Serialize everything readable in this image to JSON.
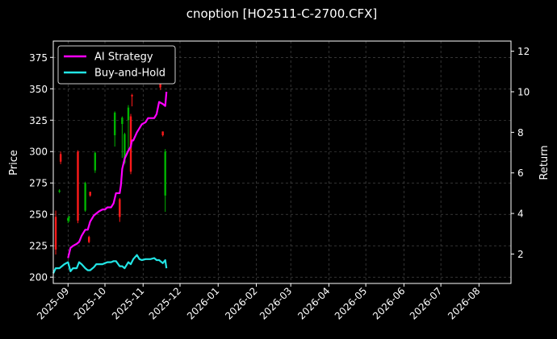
{
  "chart_data": {
    "type": "line",
    "title": "cnoption [HO2511-C-2700.CFX]",
    "xlabel": "",
    "ylabel": "Price",
    "ylabel_right": "Return",
    "legend": {
      "placement": "top-left"
    },
    "grid": true,
    "xlim": [
      "2025-08-20",
      "2026-08-27"
    ],
    "ylim": [
      195,
      388
    ],
    "ylim_right": [
      0.55,
      12.5
    ],
    "x_ticks": [
      "2025-09",
      "2025-10",
      "2025-11",
      "2025-12",
      "2026-01",
      "2026-02",
      "2026-03",
      "2026-04",
      "2026-05",
      "2026-06",
      "2026-07",
      "2026-08"
    ],
    "y_ticks": [
      200,
      225,
      250,
      275,
      300,
      325,
      350,
      375
    ],
    "y_ticks_right": [
      2,
      4,
      6,
      8,
      10,
      12
    ],
    "colors": {
      "up": "#00b300",
      "down": "#ff1a1a",
      "ai": "#ff00ff",
      "bh": "#22e5e5",
      "grid": "#555555"
    },
    "candles": [
      {
        "date": "2025-08-22",
        "open": 248,
        "close": 222,
        "high": 253,
        "low": 218
      },
      {
        "date": "2025-08-25",
        "open": 268,
        "close": 269,
        "high": 270,
        "low": 267
      },
      {
        "date": "2025-08-26",
        "open": 298,
        "close": 292,
        "high": 300,
        "low": 290
      },
      {
        "date": "2025-09-01",
        "open": 245,
        "close": 247,
        "high": 248,
        "low": 243
      },
      {
        "date": "2025-09-02",
        "open": 248,
        "close": 248,
        "high": 249,
        "low": 244
      },
      {
        "date": "2025-09-09",
        "open": 300,
        "close": 245,
        "high": 301,
        "low": 243
      },
      {
        "date": "2025-09-15",
        "open": 253,
        "close": 275,
        "high": 276,
        "low": 252
      },
      {
        "date": "2025-09-18",
        "open": 232,
        "close": 228,
        "high": 233,
        "low": 227
      },
      {
        "date": "2025-09-19",
        "open": 268,
        "close": 265,
        "high": 268,
        "low": 264
      },
      {
        "date": "2025-09-23",
        "open": 285,
        "close": 299,
        "high": 300,
        "low": 283
      },
      {
        "date": "2025-10-09",
        "open": 313,
        "close": 331,
        "high": 332,
        "low": 304
      },
      {
        "date": "2025-10-13",
        "open": 262,
        "close": 248,
        "high": 263,
        "low": 244
      },
      {
        "date": "2025-10-15",
        "open": 322,
        "close": 327,
        "high": 328,
        "low": 295
      },
      {
        "date": "2025-10-17",
        "open": 291,
        "close": 314,
        "high": 315,
        "low": 290
      },
      {
        "date": "2025-10-20",
        "open": 325,
        "close": 335,
        "high": 337,
        "low": 300
      },
      {
        "date": "2025-10-22",
        "open": 328,
        "close": 284,
        "high": 330,
        "low": 282
      },
      {
        "date": "2025-10-23",
        "open": 345,
        "close": 344,
        "high": 346,
        "low": 336
      },
      {
        "date": "2025-11-15",
        "open": 356,
        "close": 351,
        "high": 360,
        "low": 349
      },
      {
        "date": "2025-11-17",
        "open": 316,
        "close": 313,
        "high": 316,
        "low": 312
      },
      {
        "date": "2025-11-19",
        "open": 265,
        "close": 300,
        "high": 302,
        "low": 252
      }
    ],
    "series": [
      {
        "name": "AI Strategy",
        "x": [
          "2025-09-01",
          "2025-09-03",
          "2025-09-05",
          "2025-09-08",
          "2025-09-10",
          "2025-09-12",
          "2025-09-15",
          "2025-09-17",
          "2025-09-19",
          "2025-09-22",
          "2025-09-24",
          "2025-09-26",
          "2025-09-29",
          "2025-10-01",
          "2025-10-03",
          "2025-10-06",
          "2025-10-08",
          "2025-10-10",
          "2025-10-13",
          "2025-10-14",
          "2025-10-15",
          "2025-10-17",
          "2025-10-20",
          "2025-10-22",
          "2025-10-23",
          "2025-10-24",
          "2025-10-27",
          "2025-10-29",
          "2025-10-31",
          "2025-11-03",
          "2025-11-05",
          "2025-11-07",
          "2025-11-10",
          "2025-11-12",
          "2025-11-14",
          "2025-11-17",
          "2025-11-19",
          "2025-11-20"
        ],
        "values": [
          1.8,
          2.3,
          2.4,
          2.5,
          2.6,
          2.9,
          3.2,
          3.2,
          3.6,
          3.9,
          4.0,
          4.1,
          4.2,
          4.2,
          4.3,
          4.3,
          4.5,
          5.0,
          5.0,
          5.4,
          6.2,
          6.7,
          7.1,
          7.3,
          7.6,
          7.6,
          8.0,
          8.2,
          8.4,
          8.5,
          8.7,
          8.7,
          8.7,
          8.9,
          9.5,
          9.4,
          9.3,
          10.0
        ]
      },
      {
        "name": "Buy-and-Hold",
        "x": [
          "2025-08-20",
          "2025-08-22",
          "2025-08-25",
          "2025-08-27",
          "2025-08-29",
          "2025-09-01",
          "2025-09-03",
          "2025-09-05",
          "2025-09-08",
          "2025-09-10",
          "2025-09-12",
          "2025-09-15",
          "2025-09-17",
          "2025-09-19",
          "2025-09-22",
          "2025-09-24",
          "2025-09-26",
          "2025-09-29",
          "2025-10-01",
          "2025-10-03",
          "2025-10-06",
          "2025-10-08",
          "2025-10-10",
          "2025-10-13",
          "2025-10-15",
          "2025-10-17",
          "2025-10-20",
          "2025-10-22",
          "2025-10-24",
          "2025-10-27",
          "2025-10-29",
          "2025-10-31",
          "2025-11-03",
          "2025-11-05",
          "2025-11-07",
          "2025-11-10",
          "2025-11-12",
          "2025-11-14",
          "2025-11-17",
          "2025-11-19",
          "2025-11-20"
        ],
        "values": [
          1.05,
          1.3,
          1.3,
          1.4,
          1.5,
          1.6,
          1.15,
          1.3,
          1.3,
          1.6,
          1.5,
          1.3,
          1.2,
          1.2,
          1.35,
          1.5,
          1.5,
          1.5,
          1.55,
          1.6,
          1.6,
          1.65,
          1.65,
          1.4,
          1.4,
          1.3,
          1.6,
          1.5,
          1.75,
          1.95,
          1.75,
          1.7,
          1.75,
          1.75,
          1.75,
          1.8,
          1.7,
          1.7,
          1.55,
          1.7,
          1.3
        ]
      }
    ]
  }
}
